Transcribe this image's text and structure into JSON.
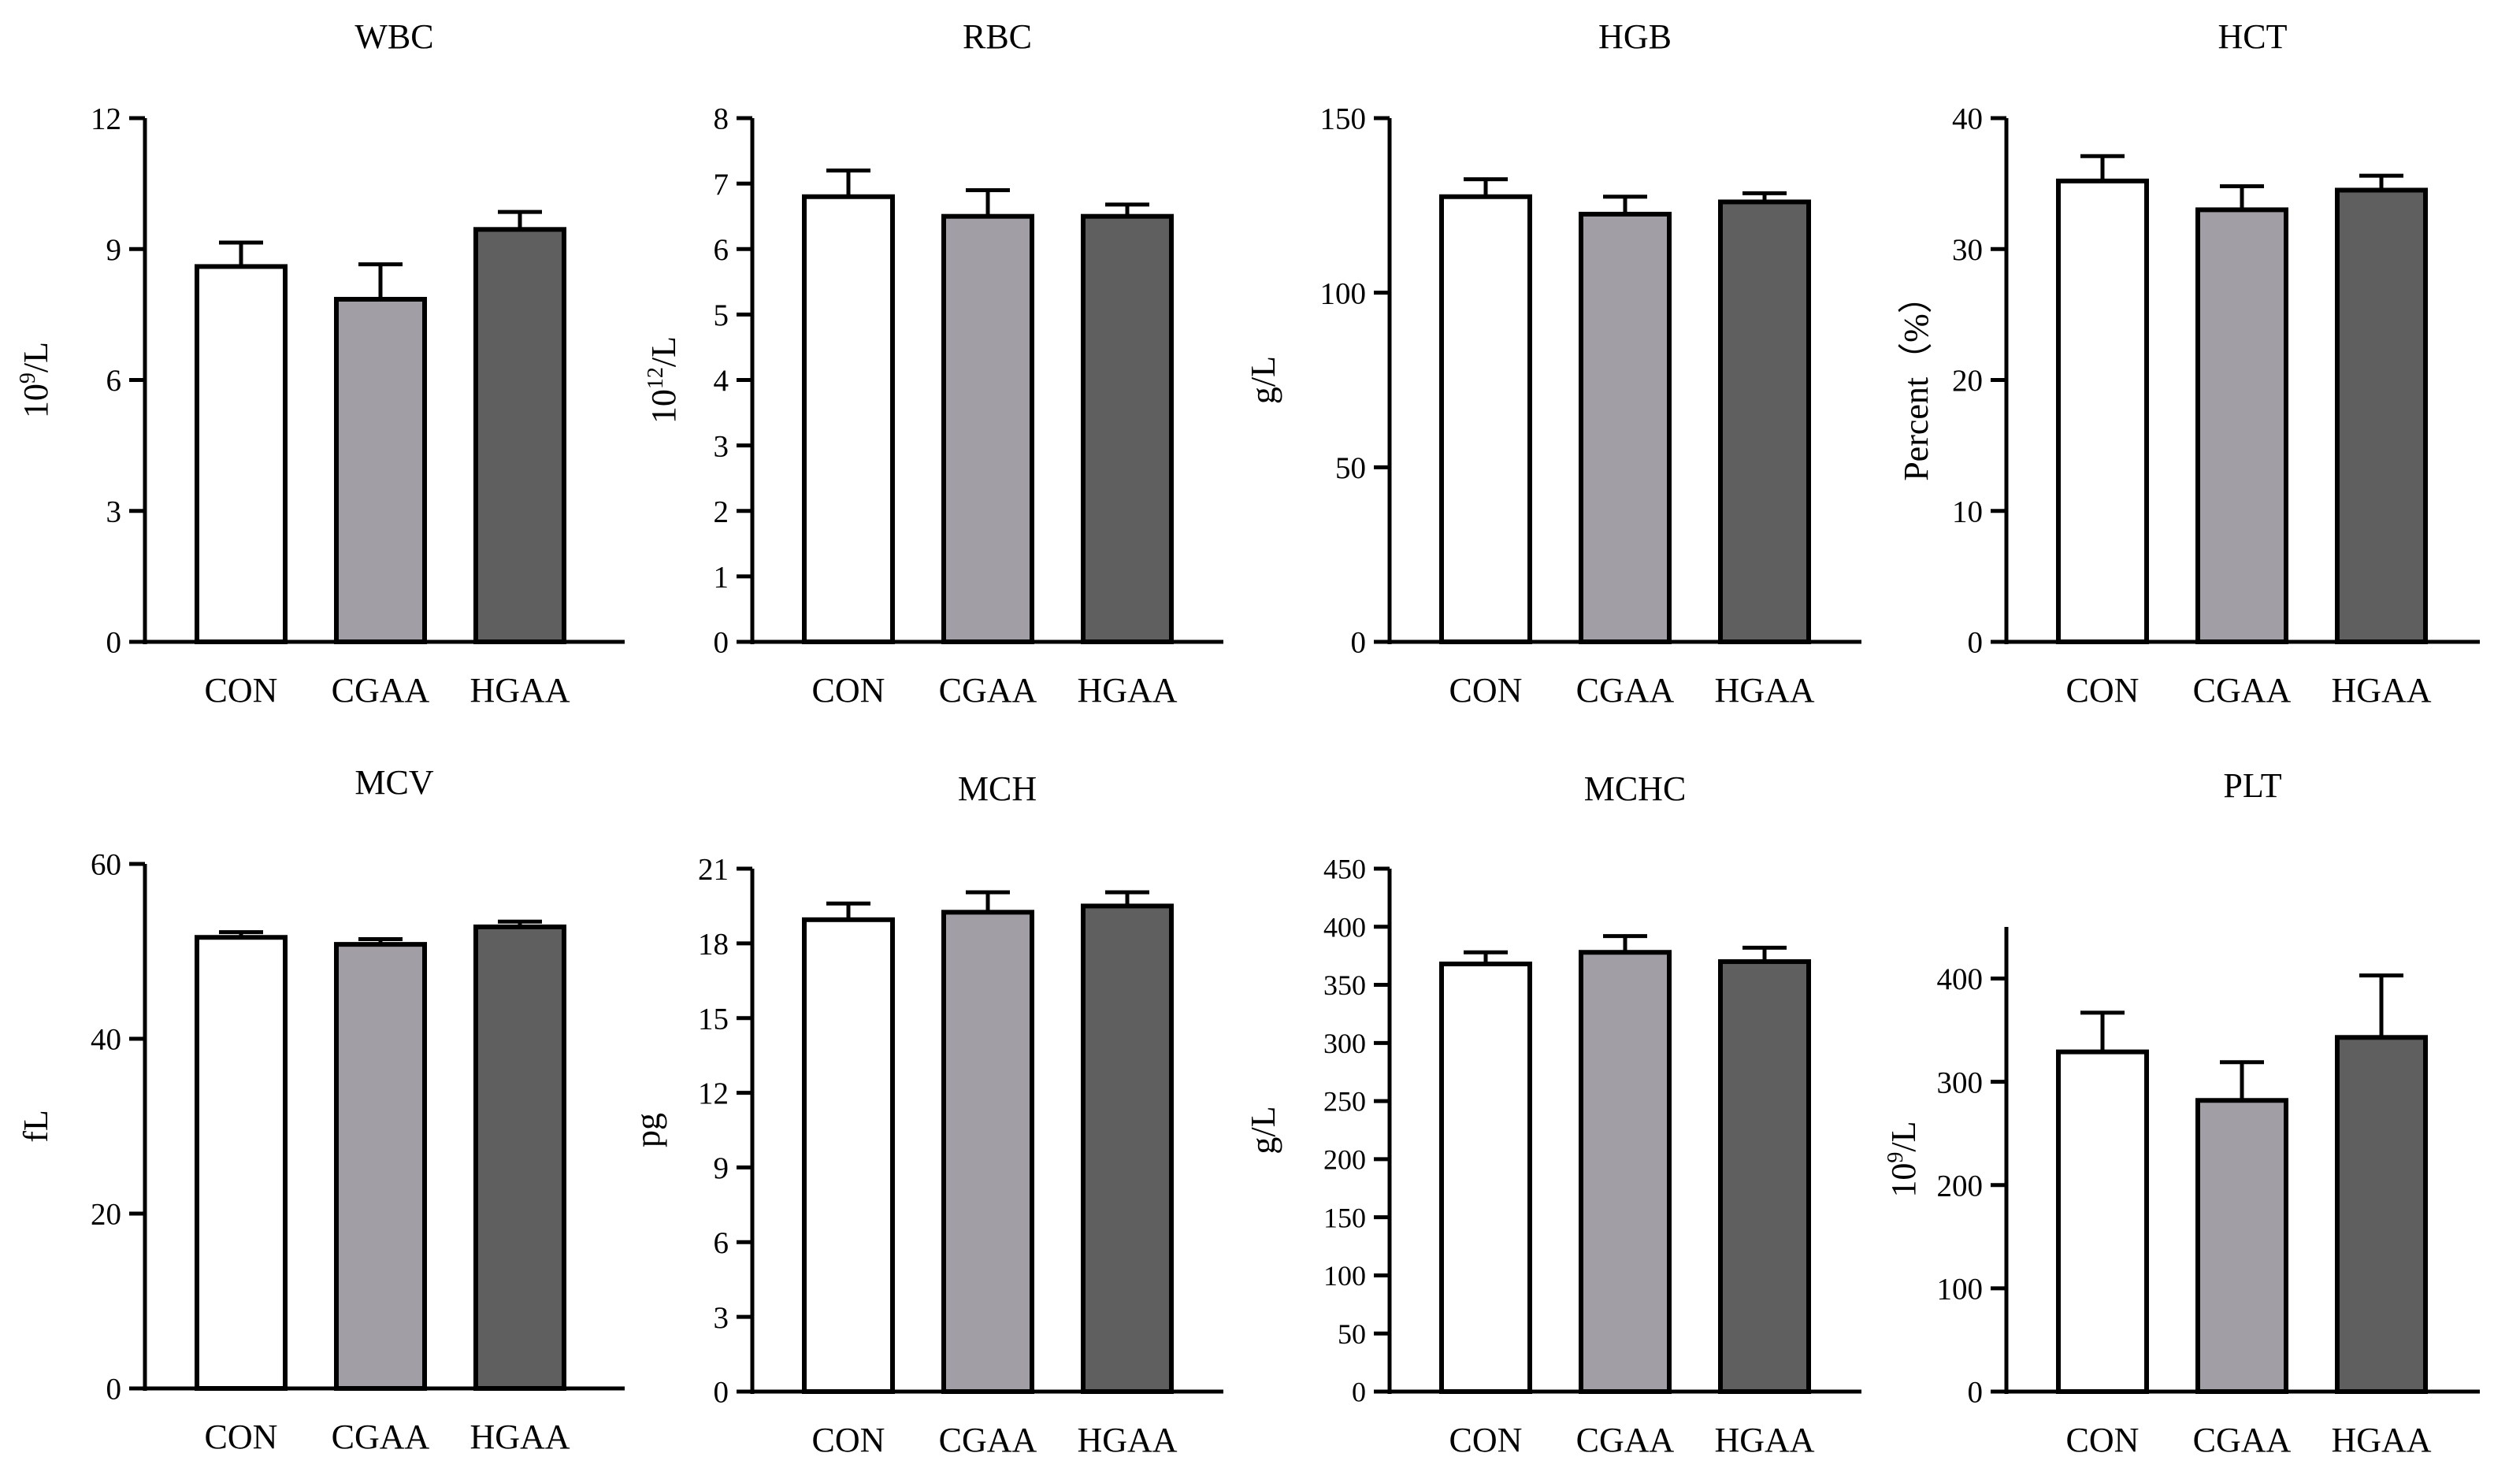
{
  "figure": {
    "background": "#ffffff"
  },
  "group_colors": [
    "#ffffff",
    "#a19fa5",
    "#5f5f5f"
  ],
  "chart_data": [
    {
      "type": "bar",
      "title": "WBC",
      "ylabel": "10^9/L",
      "ylabel_parts": [
        {
          "text": "10"
        },
        {
          "text": "9",
          "sup": true
        },
        {
          "text": "/L"
        }
      ],
      "categories": [
        "CON",
        "CGAA",
        "HGAA"
      ],
      "values": [
        8.6,
        7.85,
        9.45
      ],
      "errors": [
        0.55,
        0.8,
        0.4
      ],
      "ylim": [
        0,
        12
      ],
      "yticks": [
        0,
        3,
        6,
        9,
        12
      ]
    },
    {
      "type": "bar",
      "title": "RBC",
      "ylabel": "10^12/L",
      "ylabel_parts": [
        {
          "text": "10"
        },
        {
          "text": "12",
          "sup": true
        },
        {
          "text": "/L"
        }
      ],
      "categories": [
        "CON",
        "CGAA",
        "HGAA"
      ],
      "values": [
        6.8,
        6.5,
        6.5
      ],
      "errors": [
        0.4,
        0.4,
        0.18
      ],
      "ylim": [
        0,
        8
      ],
      "yticks": [
        0,
        1,
        2,
        3,
        4,
        5,
        6,
        7,
        8
      ]
    },
    {
      "type": "bar",
      "title": "HGB",
      "ylabel": "g/L",
      "ylabel_parts": [
        {
          "text": "g/L"
        }
      ],
      "categories": [
        "CON",
        "CGAA",
        "HGAA"
      ],
      "values": [
        127.5,
        122.5,
        126
      ],
      "errors": [
        5,
        5,
        2.5
      ],
      "ylim": [
        0,
        150
      ],
      "yticks": [
        0,
        50,
        100,
        150
      ]
    },
    {
      "type": "bar",
      "title": "HCT",
      "ylabel": "Percent（%）",
      "ylabel_parts": [
        {
          "text": "Percent（%）"
        }
      ],
      "categories": [
        "CON",
        "CGAA",
        "HGAA"
      ],
      "values": [
        35.2,
        33,
        34.5
      ],
      "errors": [
        1.9,
        1.8,
        1.1
      ],
      "ylim": [
        0,
        40
      ],
      "yticks": [
        0,
        10,
        20,
        30,
        40
      ]
    },
    {
      "type": "bar",
      "title": "MCV",
      "ylabel": "fL",
      "ylabel_parts": [
        {
          "text": "fL"
        }
      ],
      "categories": [
        "CON",
        "CGAA",
        "HGAA"
      ],
      "values": [
        51.6,
        50.8,
        52.8
      ],
      "errors": [
        0.6,
        0.6,
        0.6
      ],
      "ylim": [
        0,
        60
      ],
      "yticks": [
        0,
        20,
        40,
        60
      ]
    },
    {
      "type": "bar",
      "title": "MCH",
      "ylabel": "pg",
      "ylabel_parts": [
        {
          "text": "pg"
        }
      ],
      "categories": [
        "CON",
        "CGAA",
        "HGAA"
      ],
      "values": [
        18.95,
        19.25,
        19.5
      ],
      "errors": [
        0.65,
        0.8,
        0.55
      ],
      "ylim": [
        0,
        21
      ],
      "yticks": [
        0,
        3,
        6,
        9,
        12,
        15,
        18,
        21
      ]
    },
    {
      "type": "bar",
      "title": "MCHC",
      "ylabel": "g/L",
      "ylabel_parts": [
        {
          "text": "g/L"
        }
      ],
      "categories": [
        "CON",
        "CGAA",
        "HGAA"
      ],
      "values": [
        368,
        378,
        370
      ],
      "errors": [
        10,
        14,
        12
      ],
      "ylim": [
        0,
        450
      ],
      "yticks": [
        0,
        50,
        100,
        150,
        200,
        250,
        300,
        350,
        400,
        450
      ]
    },
    {
      "type": "bar",
      "title": "PLT",
      "ylabel": "10^9/L",
      "ylabel_parts": [
        {
          "text": "10"
        },
        {
          "text": "9",
          "sup": true
        },
        {
          "text": "/L"
        }
      ],
      "categories": [
        "CON",
        "CGAA",
        "HGAA"
      ],
      "values": [
        329,
        282,
        343
      ],
      "errors": [
        38,
        37,
        60
      ],
      "ylim": [
        0,
        450
      ],
      "yticks": [
        0,
        100,
        200,
        300,
        400
      ]
    }
  ]
}
